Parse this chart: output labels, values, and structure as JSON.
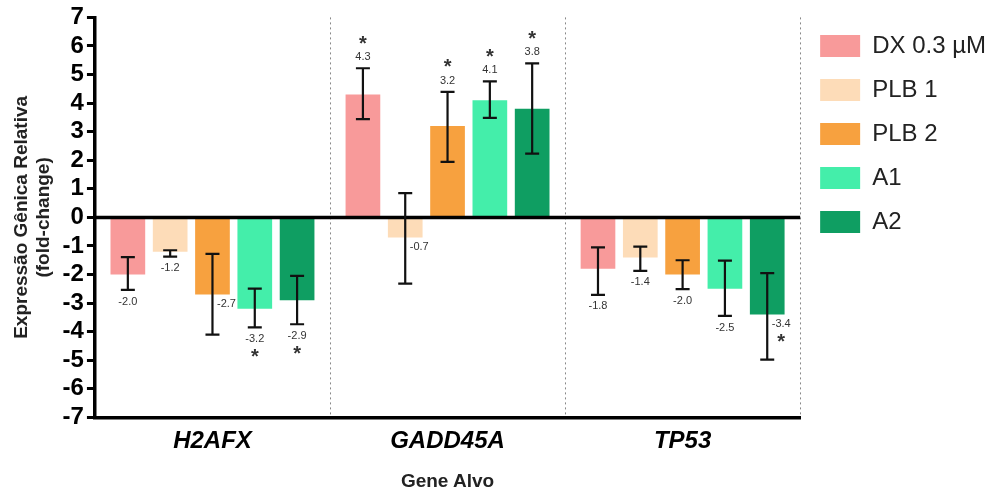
{
  "chart_data": {
    "type": "bar",
    "xlabel": "Gene Alvo",
    "ylabel": "Expressão Gênica Relativa\n(fold-change)",
    "categories": [
      "H2AFX",
      "GADD45A",
      "TP53"
    ],
    "ylim": [
      -7,
      7
    ],
    "yticks": [
      -7,
      -6,
      -5,
      -4,
      -3,
      -2,
      -1,
      0,
      1,
      2,
      3,
      4,
      5,
      6,
      7
    ],
    "grid": "x",
    "legend": "right",
    "series": [
      {
        "name": "DX 0.3 µM",
        "color": "#f89a9a",
        "values": [
          -2.0,
          4.3,
          -1.8
        ],
        "errors": [
          [
            -2.54,
            -1.39
          ],
          [
            3.44,
            5.22
          ],
          [
            -2.71,
            -1.05
          ]
        ],
        "value_labels": [
          "-2.0",
          "*\n4.3",
          "-1.8"
        ]
      },
      {
        "name": "PLB 1",
        "color": "#fddcb8",
        "values": [
          -1.2,
          -0.7,
          -1.4
        ],
        "errors": [
          [
            -1.37,
            -1.15
          ],
          [
            -2.32,
            0.85
          ],
          [
            -1.87,
            -1.02
          ]
        ],
        "value_labels": [
          "-1.2",
          "-0.7",
          "-1.4"
        ]
      },
      {
        "name": "PLB 2",
        "color": "#f7a13f",
        "values": [
          -2.7,
          3.2,
          -2.0
        ],
        "errors": [
          [
            -4.1,
            -1.28
          ],
          [
            1.94,
            4.39
          ],
          [
            -2.51,
            -1.5
          ]
        ],
        "value_labels": [
          "-2.7",
          "*\n3.2",
          "-2.0"
        ]
      },
      {
        "name": "A1",
        "color": "#44eeaa",
        "values": [
          -3.2,
          4.1,
          -2.5
        ],
        "errors": [
          [
            -3.85,
            -2.49
          ],
          [
            3.48,
            4.76
          ],
          [
            -3.45,
            -1.51
          ]
        ],
        "value_labels": [
          "-3.2\n*",
          "*\n4.1",
          "-2.5"
        ]
      },
      {
        "name": "A2",
        "color": "#0f9e62",
        "values": [
          -2.9,
          3.8,
          -3.4
        ],
        "errors": [
          [
            -3.74,
            -2.05
          ],
          [
            2.23,
            5.39
          ],
          [
            -4.98,
            -1.95
          ]
        ],
        "value_labels": [
          "-2.9\n*",
          "*\n3.8",
          "-3.4\n*"
        ]
      }
    ]
  }
}
